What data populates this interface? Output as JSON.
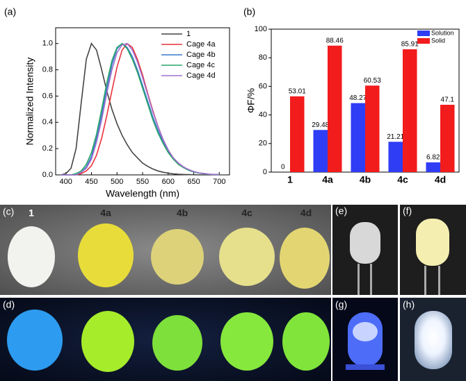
{
  "panel_labels": [
    "(a)",
    "(b)"
  ],
  "chart_data": [
    {
      "type": "line",
      "x_label": "Wavelength (nm)",
      "y_label": "Normalized Intensity",
      "x": [
        390,
        400,
        410,
        420,
        430,
        440,
        450,
        460,
        470,
        480,
        490,
        500,
        510,
        520,
        530,
        540,
        550,
        560,
        570,
        580,
        590,
        600,
        610,
        620,
        630,
        640,
        650,
        660,
        670,
        680,
        690,
        700
      ],
      "series": [
        {
          "name": "1",
          "color": "#444444",
          "values": [
            0,
            0.01,
            0.05,
            0.2,
            0.55,
            0.88,
            1.0,
            0.95,
            0.8,
            0.64,
            0.5,
            0.39,
            0.3,
            0.23,
            0.17,
            0.13,
            0.09,
            0.065,
            0.045,
            0.03,
            0.02,
            0.013,
            0.008,
            0.005,
            0.003,
            0.002,
            0.001,
            0,
            0,
            0,
            0,
            0
          ]
        },
        {
          "name": "Cage 4a",
          "color": "#e8313a",
          "values": [
            0,
            0,
            0,
            0,
            0.01,
            0.03,
            0.07,
            0.15,
            0.28,
            0.45,
            0.64,
            0.82,
            0.95,
            1.0,
            0.97,
            0.88,
            0.76,
            0.62,
            0.49,
            0.37,
            0.27,
            0.19,
            0.13,
            0.09,
            0.06,
            0.04,
            0.025,
            0.015,
            0.01,
            0.005,
            0.003,
            0.002
          ]
        },
        {
          "name": "Cage 4b",
          "color": "#3a78c8",
          "values": [
            0,
            0,
            0,
            0,
            0.02,
            0.06,
            0.14,
            0.28,
            0.46,
            0.66,
            0.84,
            0.96,
            1.0,
            0.97,
            0.9,
            0.8,
            0.68,
            0.56,
            0.44,
            0.34,
            0.25,
            0.18,
            0.13,
            0.09,
            0.06,
            0.04,
            0.025,
            0.015,
            0.01,
            0.005,
            0.003,
            0.002
          ]
        },
        {
          "name": "Cage 4c",
          "color": "#2aa66a",
          "values": [
            0,
            0,
            0,
            0.01,
            0.03,
            0.08,
            0.17,
            0.31,
            0.5,
            0.7,
            0.87,
            0.97,
            1.0,
            0.96,
            0.88,
            0.78,
            0.66,
            0.54,
            0.42,
            0.32,
            0.24,
            0.17,
            0.12,
            0.08,
            0.055,
            0.035,
            0.022,
            0.013,
            0.008,
            0.004,
            0.002,
            0.001
          ]
        },
        {
          "name": "Cage 4d",
          "color": "#a070d0",
          "values": [
            0,
            0,
            0,
            0,
            0.02,
            0.05,
            0.12,
            0.25,
            0.42,
            0.62,
            0.8,
            0.93,
            0.99,
            1.0,
            0.95,
            0.86,
            0.74,
            0.61,
            0.48,
            0.37,
            0.27,
            0.19,
            0.13,
            0.09,
            0.06,
            0.04,
            0.025,
            0.015,
            0.01,
            0.005,
            0.003,
            0.002
          ]
        }
      ],
      "xlim": [
        380,
        720
      ],
      "xticks": [
        400,
        450,
        500,
        550,
        600,
        650,
        700
      ],
      "ylim": [
        0,
        1.12
      ],
      "yticks": [
        {
          "value": 0,
          "label": "0.0"
        },
        0.2,
        0.4,
        0.6,
        0.8,
        {
          "value": 1,
          "label": "1.0"
        }
      ],
      "legend": "upper right"
    },
    {
      "type": "bar",
      "y_label": "ΦF/%",
      "categories": [
        "1",
        "4a",
        "4b",
        "4c",
        "4d"
      ],
      "series": [
        {
          "name": "Solution",
          "color": "#2f3df5",
          "values": [
            0,
            29.48,
            48.27,
            21.21,
            6.82
          ]
        },
        {
          "name": "Solid",
          "color": "#f21c1c",
          "values": [
            53.01,
            88.46,
            60.53,
            85.91,
            47.1
          ]
        }
      ],
      "ylim": [
        0,
        100
      ],
      "yticks": [
        0,
        20,
        40,
        60,
        80,
        100
      ],
      "legend": "upper right"
    }
  ],
  "photos": {
    "c": {
      "label": "(c)",
      "samples": [
        "1",
        "4a",
        "4b",
        "4c",
        "4d"
      ]
    },
    "d": {
      "label": "(d)"
    },
    "e": {
      "label": "(e)"
    },
    "f": {
      "label": "(f)"
    },
    "g": {
      "label": "(g)"
    },
    "h": {
      "label": "(h)"
    }
  }
}
